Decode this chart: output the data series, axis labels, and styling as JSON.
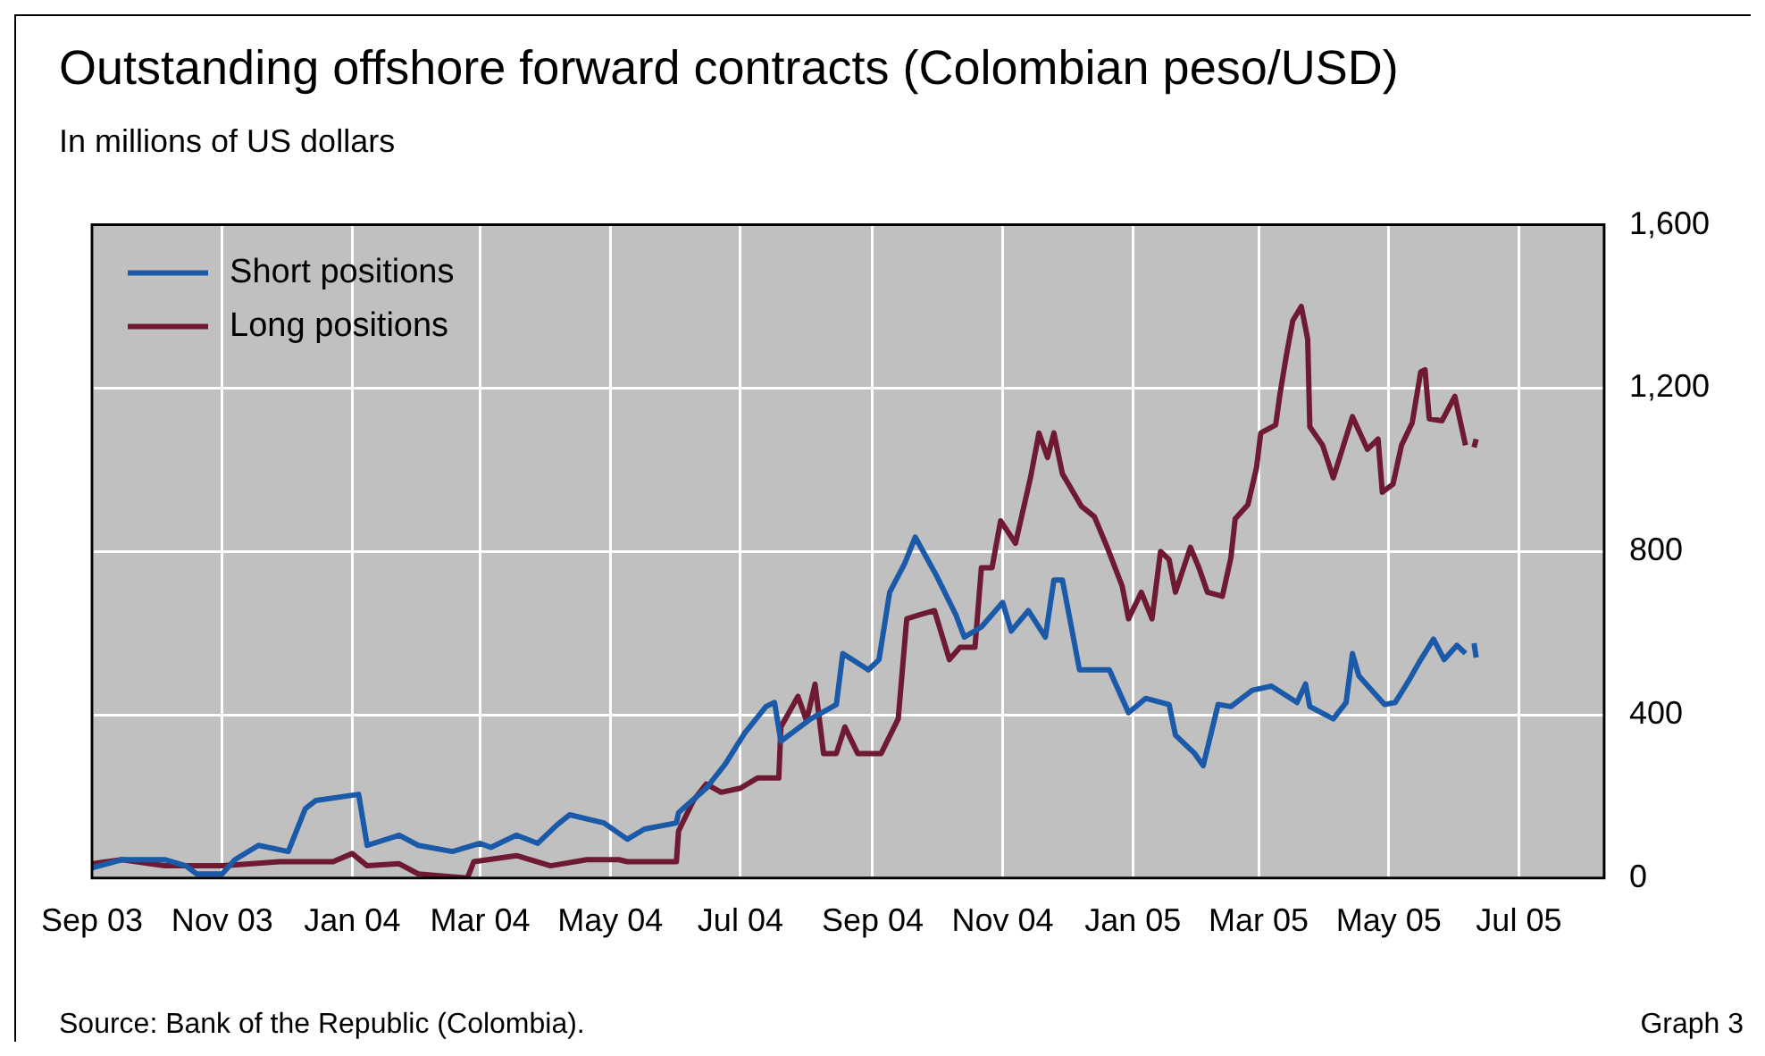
{
  "chart_data": {
    "type": "line",
    "title": "Outstanding offshore forward contracts (Colombian peso/USD)",
    "subtitle": "In millions of US dollars",
    "annotations": [
      "Source: Bank of the Republic (Colombia).",
      "Graph 3"
    ],
    "xlim": [
      "2003-09-01",
      "2005-08-10"
    ],
    "xticks": [
      {
        "value": "2003-09-01",
        "label": "Sep 03"
      },
      {
        "value": "2003-11-01",
        "label": "Nov 03"
      },
      {
        "value": "2004-01-01",
        "label": "Jan 04"
      },
      {
        "value": "2004-03-01",
        "label": "Mar 04"
      },
      {
        "value": "2004-05-01",
        "label": "May 04"
      },
      {
        "value": "2004-07-01",
        "label": "Jul 04"
      },
      {
        "value": "2004-09-01",
        "label": "Sep 04"
      },
      {
        "value": "2004-11-01",
        "label": "Nov 04"
      },
      {
        "value": "2005-01-01",
        "label": "Jan 05"
      },
      {
        "value": "2005-03-01",
        "label": "Mar 05"
      },
      {
        "value": "2005-05-01",
        "label": "May 05"
      },
      {
        "value": "2005-07-01",
        "label": "Jul 05"
      }
    ],
    "ylim": [
      0,
      1600
    ],
    "yticks": [
      0,
      400,
      800,
      {
        "value": 1200,
        "label": "1,200"
      },
      {
        "value": 1600,
        "label": "1,600"
      }
    ],
    "grid": true,
    "legend": "top left",
    "marker": "none",
    "line_style": "solid",
    "series": [
      {
        "name": "Short positions",
        "color": "#1a5aa8",
        "x": [
          "2003-09-01",
          "2003-09-15",
          "2003-10-05",
          "2003-10-15",
          "2003-10-20",
          "2003-11-01",
          "2003-11-07",
          "2003-11-18",
          "2003-12-02",
          "2003-12-10",
          "2003-12-15",
          "2004-01-04",
          "2004-01-08",
          "2004-01-23",
          "2004-02-01",
          "2004-02-17",
          "2004-03-01",
          "2004-03-06",
          "2004-03-18",
          "2004-03-28",
          "2004-04-06",
          "2004-04-12",
          "2004-04-28",
          "2004-05-09",
          "2004-05-17",
          "2004-06-01",
          "2004-06-02",
          "2004-06-15",
          "2004-06-24",
          "2004-07-03",
          "2004-07-13",
          "2004-07-17",
          "2004-07-20",
          "2004-08-03",
          "2004-08-15",
          "2004-08-18",
          "2004-08-30",
          "2004-09-04",
          "2004-09-09",
          "2004-09-16",
          "2004-09-21",
          "2004-10-01",
          "2004-10-10",
          "2004-10-14",
          "2004-10-22",
          "2004-11-01",
          "2004-11-05",
          "2004-11-13",
          "2004-11-21",
          "2004-11-25",
          "2004-11-29",
          "2004-12-07",
          "2004-12-21",
          "2004-12-30",
          "2005-01-07",
          "2005-01-18",
          "2005-01-21",
          "2005-01-30",
          "2005-02-03",
          "2005-02-10",
          "2005-02-16",
          "2005-02-26",
          "2005-03-07",
          "2005-03-19",
          "2005-03-23",
          "2005-03-25",
          "2005-04-05",
          "2005-04-11",
          "2005-04-14",
          "2005-04-17",
          "2005-04-29",
          "2005-05-04",
          "2005-05-10",
          "2005-05-16",
          "2005-05-22",
          "2005-05-27",
          "2005-06-02",
          "2005-06-06",
          "2005-06-08",
          "2005-06-10",
          "2005-06-11"
        ],
        "values": [
          25,
          45,
          45,
          30,
          10,
          10,
          45,
          80,
          65,
          170,
          190,
          205,
          80,
          105,
          80,
          65,
          85,
          75,
          105,
          85,
          130,
          155,
          135,
          95,
          120,
          135,
          160,
          220,
          280,
          355,
          420,
          430,
          335,
          390,
          425,
          550,
          510,
          535,
          700,
          770,
          835,
          740,
          645,
          590,
          615,
          675,
          605,
          655,
          590,
          730,
          730,
          510,
          510,
          405,
          440,
          425,
          350,
          305,
          275,
          425,
          420,
          460,
          470,
          430,
          475,
          420,
          390,
          430,
          550,
          495,
          425,
          430,
          480,
          535,
          585,
          535,
          570,
          550,
          null,
          575,
          540
        ]
      },
      {
        "name": "Long positions",
        "color": "#6e1a33",
        "x": [
          "2003-09-01",
          "2003-09-15",
          "2003-10-05",
          "2003-11-01",
          "2003-11-28",
          "2003-12-23",
          "2004-01-01",
          "2004-01-08",
          "2004-01-23",
          "2004-02-01",
          "2004-02-24",
          "2004-02-27",
          "2004-03-18",
          "2004-04-03",
          "2004-04-20",
          "2004-05-05",
          "2004-05-09",
          "2004-06-01",
          "2004-06-02",
          "2004-06-09",
          "2004-06-15",
          "2004-06-22",
          "2004-07-01",
          "2004-07-09",
          "2004-07-19",
          "2004-07-20",
          "2004-07-28",
          "2004-08-01",
          "2004-08-05",
          "2004-08-09",
          "2004-08-15",
          "2004-08-19",
          "2004-08-25",
          "2004-09-05",
          "2004-09-13",
          "2004-09-17",
          "2004-09-23",
          "2004-09-30",
          "2004-10-07",
          "2004-10-12",
          "2004-10-19",
          "2004-10-22",
          "2004-10-27",
          "2004-10-31",
          "2004-11-07",
          "2004-11-14",
          "2004-11-18",
          "2004-11-22",
          "2004-11-25",
          "2004-11-29",
          "2004-12-08",
          "2004-12-14",
          "2004-12-20",
          "2004-12-27",
          "2004-12-30",
          "2005-01-05",
          "2005-01-10",
          "2005-01-14",
          "2005-01-18",
          "2005-01-21",
          "2005-01-28",
          "2005-02-01",
          "2005-02-05",
          "2005-02-12",
          "2005-02-16",
          "2005-02-18",
          "2005-02-24",
          "2005-02-28",
          "2005-03-02",
          "2005-03-09",
          "2005-03-11",
          "2005-03-14",
          "2005-03-17",
          "2005-03-21",
          "2005-03-24",
          "2005-03-25",
          "2005-03-31",
          "2005-04-05",
          "2005-04-08",
          "2005-04-14",
          "2005-04-21",
          "2005-04-26",
          "2005-04-28",
          "2005-05-03",
          "2005-05-07",
          "2005-05-12",
          "2005-05-16",
          "2005-05-18",
          "2005-05-20",
          "2005-05-26",
          "2005-06-01",
          "2005-06-06",
          "2005-06-08",
          "2005-06-10",
          "2005-06-11"
        ],
        "values": [
          35,
          45,
          30,
          30,
          40,
          40,
          60,
          30,
          35,
          10,
          0,
          40,
          55,
          30,
          45,
          45,
          40,
          40,
          115,
          190,
          230,
          210,
          220,
          245,
          245,
          370,
          445,
          385,
          475,
          305,
          305,
          370,
          305,
          305,
          390,
          635,
          645,
          655,
          535,
          565,
          565,
          760,
          760,
          875,
          820,
          980,
          1090,
          1030,
          1090,
          990,
          910,
          885,
          810,
          715,
          635,
          700,
          635,
          800,
          780,
          700,
          810,
          760,
          700,
          690,
          785,
          880,
          915,
          1005,
          1090,
          1110,
          1185,
          1280,
          1365,
          1400,
          1320,
          1105,
          1060,
          980,
          1030,
          1130,
          1050,
          1075,
          945,
          965,
          1060,
          1115,
          1240,
          1245,
          1125,
          1120,
          1180,
          1060,
          null,
          1055,
          1075
        ]
      }
    ]
  }
}
